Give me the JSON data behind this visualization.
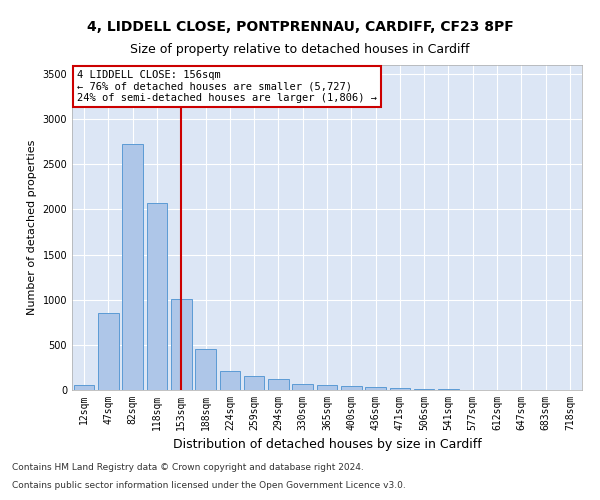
{
  "title1": "4, LIDDELL CLOSE, PONTPRENNAU, CARDIFF, CF23 8PF",
  "title2": "Size of property relative to detached houses in Cardiff",
  "xlabel": "Distribution of detached houses by size in Cardiff",
  "ylabel": "Number of detached properties",
  "footer1": "Contains HM Land Registry data © Crown copyright and database right 2024.",
  "footer2": "Contains public sector information licensed under the Open Government Licence v3.0.",
  "categories": [
    "12sqm",
    "47sqm",
    "82sqm",
    "118sqm",
    "153sqm",
    "188sqm",
    "224sqm",
    "259sqm",
    "294sqm",
    "330sqm",
    "365sqm",
    "400sqm",
    "436sqm",
    "471sqm",
    "506sqm",
    "541sqm",
    "577sqm",
    "612sqm",
    "647sqm",
    "683sqm",
    "718sqm"
  ],
  "values": [
    60,
    850,
    2720,
    2070,
    1010,
    450,
    210,
    150,
    125,
    70,
    55,
    45,
    30,
    20,
    15,
    8,
    5,
    5,
    3,
    3,
    2
  ],
  "bar_color": "#aec6e8",
  "bar_edge_color": "#5b9bd5",
  "vline_x_index": 4,
  "vline_color": "#cc0000",
  "annotation_line1": "4 LIDDELL CLOSE: 156sqm",
  "annotation_line2": "← 76% of detached houses are smaller (5,727)",
  "annotation_line3": "24% of semi-detached houses are larger (1,806) →",
  "annotation_box_color": "#ffffff",
  "annotation_box_edge_color": "#cc0000",
  "ylim": [
    0,
    3600
  ],
  "yticks": [
    0,
    500,
    1000,
    1500,
    2000,
    2500,
    3000,
    3500
  ],
  "background_color": "#dce6f5",
  "grid_color": "#ffffff",
  "title1_fontsize": 10,
  "title2_fontsize": 9,
  "xlabel_fontsize": 9,
  "ylabel_fontsize": 8,
  "tick_fontsize": 7,
  "annotation_fontsize": 7.5,
  "footer_fontsize": 6.5
}
